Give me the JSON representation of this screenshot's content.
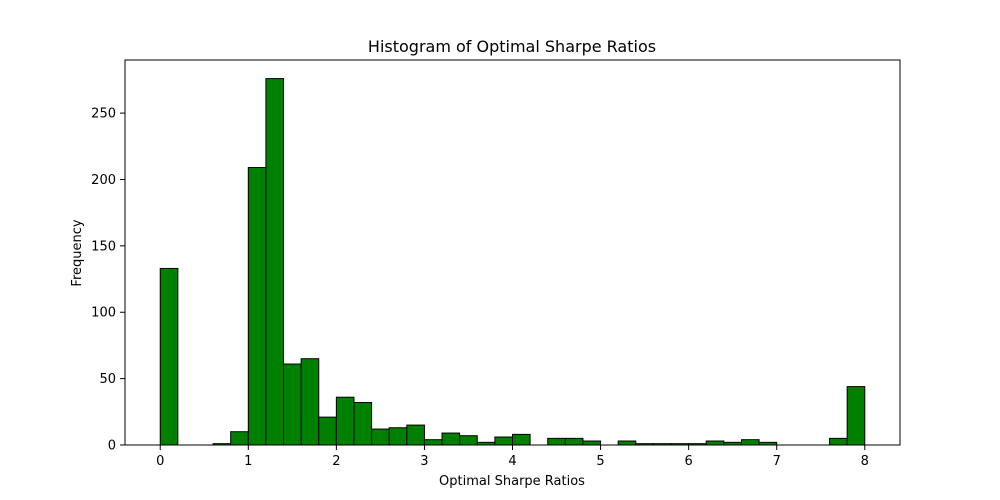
{
  "chart_data": {
    "type": "bar",
    "title": "Histogram of Optimal Sharpe Ratios",
    "xlabel": "Optimal Sharpe Ratios",
    "ylabel": "Frequency",
    "xlim": [
      -0.4,
      8.4
    ],
    "ylim": [
      0,
      290
    ],
    "xticks": [
      0,
      1,
      2,
      3,
      4,
      5,
      6,
      7,
      8
    ],
    "yticks": [
      0,
      50,
      100,
      150,
      200,
      250
    ],
    "grid": false,
    "bin_start": 0,
    "bin_width": 0.2,
    "values": [
      133,
      0,
      0,
      1,
      10,
      209,
      276,
      61,
      65,
      21,
      36,
      32,
      12,
      13,
      15,
      4,
      9,
      7,
      2,
      6,
      8,
      0,
      5,
      5,
      3,
      0,
      3,
      1,
      1,
      1,
      1,
      3,
      2,
      4,
      2,
      0,
      0,
      0,
      5,
      44
    ],
    "bar_color": "#008000",
    "edge_color": "#000000"
  }
}
